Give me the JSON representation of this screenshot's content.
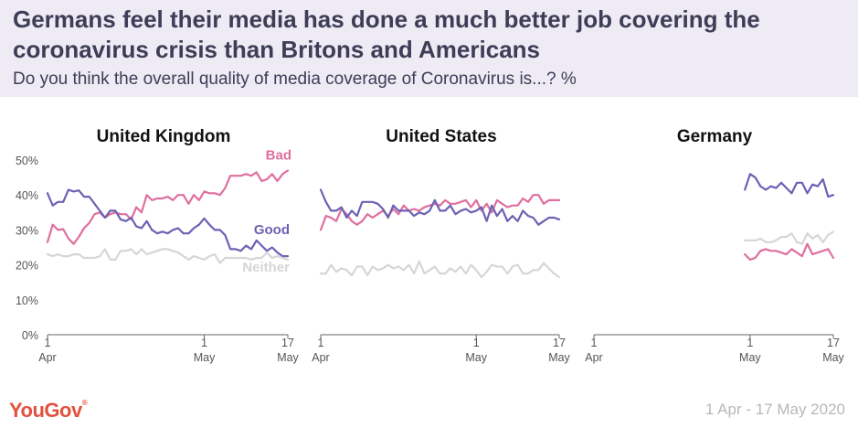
{
  "header": {
    "title": "Germans feel their media has done a much better job covering the coronavirus crisis than Britons and Americans",
    "subtitle": "Do you think the overall quality of media coverage of Coronavirus is...? %"
  },
  "footer": {
    "logo": "YouGov",
    "date_range": "1 Apr - 17 May 2020"
  },
  "colors": {
    "bad": "#df6f9e",
    "good": "#6b62b3",
    "neither": "#d6d6d6",
    "text": "#3d3d57",
    "axis": "#555555",
    "header_bg": "#eeebf4"
  },
  "chart_data": [
    {
      "type": "line",
      "title": "United Kingdom",
      "x_range": [
        1,
        47
      ],
      "x_ticks": [
        {
          "x": 1,
          "label": [
            "1",
            "Apr"
          ]
        },
        {
          "x": 31,
          "label": [
            "1",
            "May"
          ]
        },
        {
          "x": 47,
          "label": [
            "17",
            "May"
          ]
        }
      ],
      "ylim": [
        0,
        50
      ],
      "y_ticks": [
        {
          "v": 0,
          "label": "0%"
        },
        {
          "v": 10,
          "label": "10%"
        },
        {
          "v": 20,
          "label": "20%"
        },
        {
          "v": 30,
          "label": "30%"
        },
        {
          "v": 40,
          "label": "40%"
        },
        {
          "v": 50,
          "label": "50%"
        }
      ],
      "series": [
        {
          "name": "Bad",
          "label_text": "Bad",
          "color_key": "bad",
          "x": [
            1,
            2,
            3,
            4,
            5,
            6,
            7,
            8,
            9,
            10,
            11,
            12,
            13,
            14,
            15,
            16,
            17,
            18,
            19,
            20,
            21,
            22,
            23,
            24,
            25,
            26,
            27,
            28,
            29,
            30,
            31,
            32,
            33,
            34,
            35,
            36,
            37,
            38,
            39,
            40,
            41,
            42,
            43,
            44,
            45,
            46,
            47
          ],
          "values": [
            26.5,
            31.5,
            30,
            30.2,
            27.5,
            26,
            28,
            30.5,
            32,
            34.5,
            35,
            33.5,
            34.5,
            35,
            34.5,
            34.5,
            33,
            36.5,
            35,
            40,
            38.5,
            39,
            39,
            39.5,
            38.5,
            40,
            40,
            37.5,
            40,
            38.5,
            41,
            40.5,
            40.5,
            40,
            42,
            45.5,
            45.5,
            45.5,
            46,
            45.5,
            46.5,
            44,
            44.5,
            46,
            44,
            46,
            47
          ]
        },
        {
          "name": "Good",
          "label_text": "Good",
          "color_key": "good",
          "x": [
            1,
            2,
            3,
            4,
            5,
            6,
            7,
            8,
            9,
            10,
            11,
            12,
            13,
            14,
            15,
            16,
            17,
            18,
            19,
            20,
            21,
            22,
            23,
            24,
            25,
            26,
            27,
            28,
            29,
            30,
            31,
            32,
            33,
            34,
            35,
            36,
            37,
            38,
            39,
            40,
            41,
            42,
            43,
            44,
            45,
            46,
            47
          ],
          "values": [
            40.5,
            37,
            38,
            38,
            41.5,
            41,
            41.3,
            39.5,
            39.5,
            37.5,
            35.5,
            33.5,
            35.5,
            35.5,
            33,
            32.5,
            33.5,
            31,
            30.5,
            32.5,
            30,
            29,
            29.5,
            29,
            30,
            30.5,
            29,
            29,
            30.5,
            31.5,
            33.3,
            31.5,
            30,
            30,
            28.5,
            24.5,
            24.5,
            24,
            25.5,
            24.5,
            27,
            25.5,
            24,
            25,
            23.5,
            22.5,
            22.5
          ]
        },
        {
          "name": "Neither",
          "label_text": "Neither",
          "color_key": "neither",
          "x": [
            1,
            2,
            3,
            4,
            5,
            6,
            7,
            8,
            9,
            10,
            11,
            12,
            13,
            14,
            15,
            16,
            17,
            18,
            19,
            20,
            21,
            22,
            23,
            24,
            25,
            26,
            27,
            28,
            29,
            30,
            31,
            32,
            33,
            34,
            35,
            36,
            37,
            38,
            39,
            40,
            41,
            42,
            43,
            44,
            45,
            46,
            47
          ],
          "values": [
            23,
            22.5,
            23,
            22.5,
            22.5,
            23,
            23,
            22,
            22,
            22,
            22.5,
            24.5,
            21.5,
            21.5,
            24,
            24,
            24.5,
            23,
            24.5,
            23,
            23.5,
            24,
            24.5,
            24.5,
            24,
            23.5,
            22.5,
            21.5,
            22.5,
            22,
            21.5,
            22.5,
            23,
            20.5,
            22,
            22,
            22,
            22,
            22,
            21.5,
            22,
            22,
            23.5,
            22,
            22.5,
            22,
            21.5
          ]
        }
      ]
    },
    {
      "type": "line",
      "title": "United States",
      "x_range": [
        1,
        47
      ],
      "x_ticks": [
        {
          "x": 1,
          "label": [
            "1",
            "Apr"
          ]
        },
        {
          "x": 31,
          "label": [
            "1",
            "May"
          ]
        },
        {
          "x": 47,
          "label": [
            "17",
            "May"
          ]
        }
      ],
      "ylim": [
        0,
        50
      ],
      "series": [
        {
          "name": "Bad",
          "color_key": "bad",
          "x": [
            1,
            2,
            3,
            4,
            5,
            6,
            7,
            8,
            9,
            10,
            11,
            12,
            13,
            14,
            15,
            16,
            17,
            18,
            19,
            20,
            21,
            22,
            23,
            24,
            25,
            26,
            27,
            28,
            29,
            30,
            31,
            32,
            33,
            34,
            35,
            36,
            37,
            38,
            39,
            40,
            41,
            42,
            43,
            44,
            45,
            46,
            47
          ],
          "values": [
            30,
            34,
            33.5,
            32.5,
            36,
            34.5,
            32.5,
            31.5,
            32.5,
            34.5,
            33.5,
            34.5,
            35.5,
            34,
            36,
            34.5,
            37,
            35.5,
            36,
            35.5,
            36.5,
            37,
            37.5,
            37,
            38.5,
            37.5,
            37.5,
            38,
            38.5,
            36.5,
            38.5,
            35.5,
            37.5,
            35,
            38.5,
            37.5,
            36.5,
            37,
            37,
            39,
            38,
            40,
            40,
            37.5,
            38.5,
            38.5,
            38.5
          ]
        },
        {
          "name": "Good",
          "color_key": "good",
          "x": [
            1,
            2,
            3,
            4,
            5,
            6,
            7,
            8,
            9,
            10,
            11,
            12,
            13,
            14,
            15,
            16,
            17,
            18,
            19,
            20,
            21,
            22,
            23,
            24,
            25,
            26,
            27,
            28,
            29,
            30,
            31,
            32,
            33,
            34,
            35,
            36,
            37,
            38,
            39,
            40,
            41,
            42,
            43,
            44,
            45,
            46,
            47
          ],
          "values": [
            41.5,
            38,
            35.5,
            35.5,
            36.5,
            33.5,
            35.5,
            34,
            38,
            38,
            38,
            37.5,
            36,
            33.5,
            37,
            35.5,
            35.5,
            35.5,
            34,
            35,
            34.5,
            35.5,
            38.5,
            35.5,
            35.5,
            37,
            34.5,
            35.5,
            36,
            35,
            35.5,
            36.5,
            32.5,
            37,
            34,
            36,
            32.5,
            34,
            32.5,
            35.5,
            34,
            33.5,
            31.5,
            32.5,
            33.5,
            33.5,
            33
          ]
        },
        {
          "name": "Neither",
          "color_key": "neither",
          "x": [
            1,
            2,
            3,
            4,
            5,
            6,
            7,
            8,
            9,
            10,
            11,
            12,
            13,
            14,
            15,
            16,
            17,
            18,
            19,
            20,
            21,
            22,
            23,
            24,
            25,
            26,
            27,
            28,
            29,
            30,
            31,
            32,
            33,
            34,
            35,
            36,
            37,
            38,
            39,
            40,
            41,
            42,
            43,
            44,
            45,
            46,
            47
          ],
          "values": [
            17.5,
            17.5,
            20,
            18,
            19,
            18.5,
            17,
            19.5,
            19.5,
            17,
            19.5,
            18.5,
            19,
            20,
            19,
            19.5,
            18.5,
            20,
            17.5,
            21,
            17.5,
            18.5,
            19.5,
            17.5,
            17.5,
            19,
            18,
            19.5,
            17.5,
            20,
            18.5,
            16.5,
            18,
            20,
            19.5,
            19.5,
            17.5,
            19.5,
            20,
            17.5,
            17.5,
            18.5,
            18.5,
            20.5,
            19,
            17.5,
            16.5
          ]
        }
      ]
    },
    {
      "type": "line",
      "title": "Germany",
      "x_range": [
        1,
        47
      ],
      "x_ticks": [
        {
          "x": 1,
          "label": [
            "1",
            "Apr"
          ]
        },
        {
          "x": 31,
          "label": [
            "1",
            "May"
          ]
        },
        {
          "x": 47,
          "label": [
            "17",
            "May"
          ]
        }
      ],
      "ylim": [
        0,
        50
      ],
      "series": [
        {
          "name": "Good",
          "color_key": "good",
          "x": [
            30,
            31,
            32,
            33,
            34,
            35,
            36,
            37,
            38,
            39,
            40,
            41,
            42,
            43,
            44,
            45,
            46,
            47
          ],
          "values": [
            41.5,
            46,
            45,
            42.5,
            41.5,
            42.5,
            42,
            43.5,
            42,
            40.5,
            43.5,
            43.5,
            40.5,
            43,
            42.5,
            44.5,
            39.5,
            40
          ]
        },
        {
          "name": "Neither",
          "color_key": "neither",
          "x": [
            30,
            31,
            32,
            33,
            34,
            35,
            36,
            37,
            38,
            39,
            40,
            41,
            42,
            43,
            44,
            45,
            46,
            47
          ],
          "values": [
            27,
            27,
            27,
            27.5,
            26.5,
            26.5,
            27,
            28,
            28,
            29,
            26.5,
            26,
            29,
            27.5,
            28.5,
            26.5,
            28.5,
            29.5
          ]
        },
        {
          "name": "Bad",
          "color_key": "bad",
          "x": [
            30,
            31,
            32,
            33,
            34,
            35,
            36,
            37,
            38,
            39,
            40,
            41,
            42,
            43,
            44,
            45,
            46,
            47
          ],
          "values": [
            23,
            21.5,
            22,
            24,
            24.5,
            24,
            24,
            23.5,
            23,
            24.5,
            23.5,
            22.5,
            26,
            23,
            23.5,
            24,
            24.5,
            22
          ]
        }
      ]
    }
  ]
}
